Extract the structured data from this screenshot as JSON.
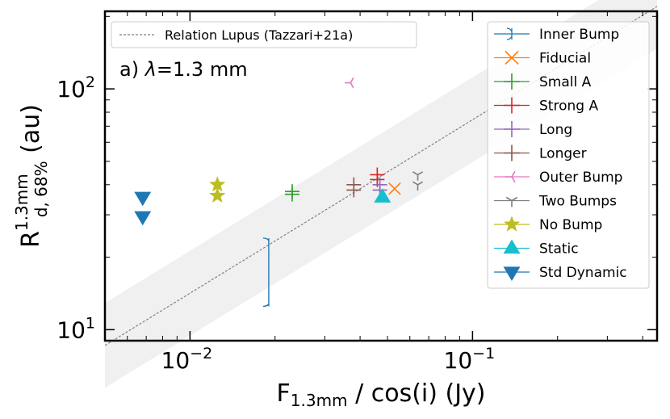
{
  "chart_data": {
    "type": "scatter",
    "xlabel": "F",
    "xlabel_sub": "1.3mm",
    "xlabel_rest": " / cos(i) (Jy)",
    "ylabel": "R",
    "ylabel_sup": "1.3mm",
    "ylabel_sub": "d, 68%",
    "ylabel_rest": " (au)",
    "xscale": "log",
    "yscale": "log",
    "xlim": [
      0.005,
      0.45
    ],
    "ylim": [
      9,
      210
    ],
    "x_ticks": [
      {
        "value": 0.01,
        "base": "10",
        "exp": "−2"
      },
      {
        "value": 0.1,
        "base": "10",
        "exp": "−1"
      }
    ],
    "y_ticks": [
      {
        "value": 10,
        "base": "10",
        "exp": "1"
      },
      {
        "value": 100,
        "base": "10",
        "exp": "2"
      }
    ],
    "annotation": {
      "prefix": "a) ",
      "symbol": "λ",
      "suffix": "=1.3 mm"
    },
    "relation": {
      "name": "Relation Lupus (Tazzari+21a)",
      "x_start": 0.005,
      "y_start": 8.6,
      "x_end": 0.45,
      "y_end": 220,
      "band_factor": 1.5,
      "color": "#808080"
    },
    "legend_left_position": "upper-left",
    "legend_right_position": "upper-right",
    "series": [
      {
        "name": "Inner Bump",
        "marker": "bar",
        "color": "#1f77b4",
        "points": [
          [
            0.019,
            12.5,
            24
          ]
        ]
      },
      {
        "name": "Fiducial",
        "marker": "x",
        "color": "#ff7f0e",
        "points": [
          [
            0.053,
            38.5
          ]
        ]
      },
      {
        "name": "Small A",
        "marker": "plus",
        "color": "#2ca02c",
        "points": [
          [
            0.023,
            37.5
          ],
          [
            0.023,
            36.5
          ]
        ]
      },
      {
        "name": "Strong A",
        "marker": "plus",
        "color": "#d62728",
        "points": [
          [
            0.046,
            44
          ],
          [
            0.046,
            42
          ]
        ]
      },
      {
        "name": "Long",
        "marker": "plus",
        "color": "#9467bd",
        "points": [
          [
            0.047,
            40
          ],
          [
            0.047,
            38
          ]
        ]
      },
      {
        "name": "Longer",
        "marker": "plus",
        "color": "#8c564b",
        "points": [
          [
            0.038,
            40
          ],
          [
            0.038,
            38
          ]
        ]
      },
      {
        "name": "Outer Bump",
        "marker": "tri_left",
        "color": "#e377c2",
        "points": [
          [
            0.037,
            106
          ]
        ]
      },
      {
        "name": "Two Bumps",
        "marker": "tri_down",
        "color": "#7f7f7f",
        "points": [
          [
            0.064,
            44
          ],
          [
            0.064,
            40
          ]
        ]
      },
      {
        "name": "No Bump",
        "marker": "star",
        "color": "#bcbd22",
        "points": [
          [
            0.0125,
            40
          ],
          [
            0.0125,
            36
          ]
        ]
      },
      {
        "name": "Static",
        "marker": "triangle_up",
        "color": "#17becf",
        "points": [
          [
            0.048,
            35.5
          ]
        ]
      },
      {
        "name": "Std Dynamic",
        "marker": "triangle_down",
        "color": "#1f77b4",
        "points": [
          [
            0.0068,
            35.5
          ],
          [
            0.0068,
            29.5
          ]
        ]
      }
    ]
  }
}
